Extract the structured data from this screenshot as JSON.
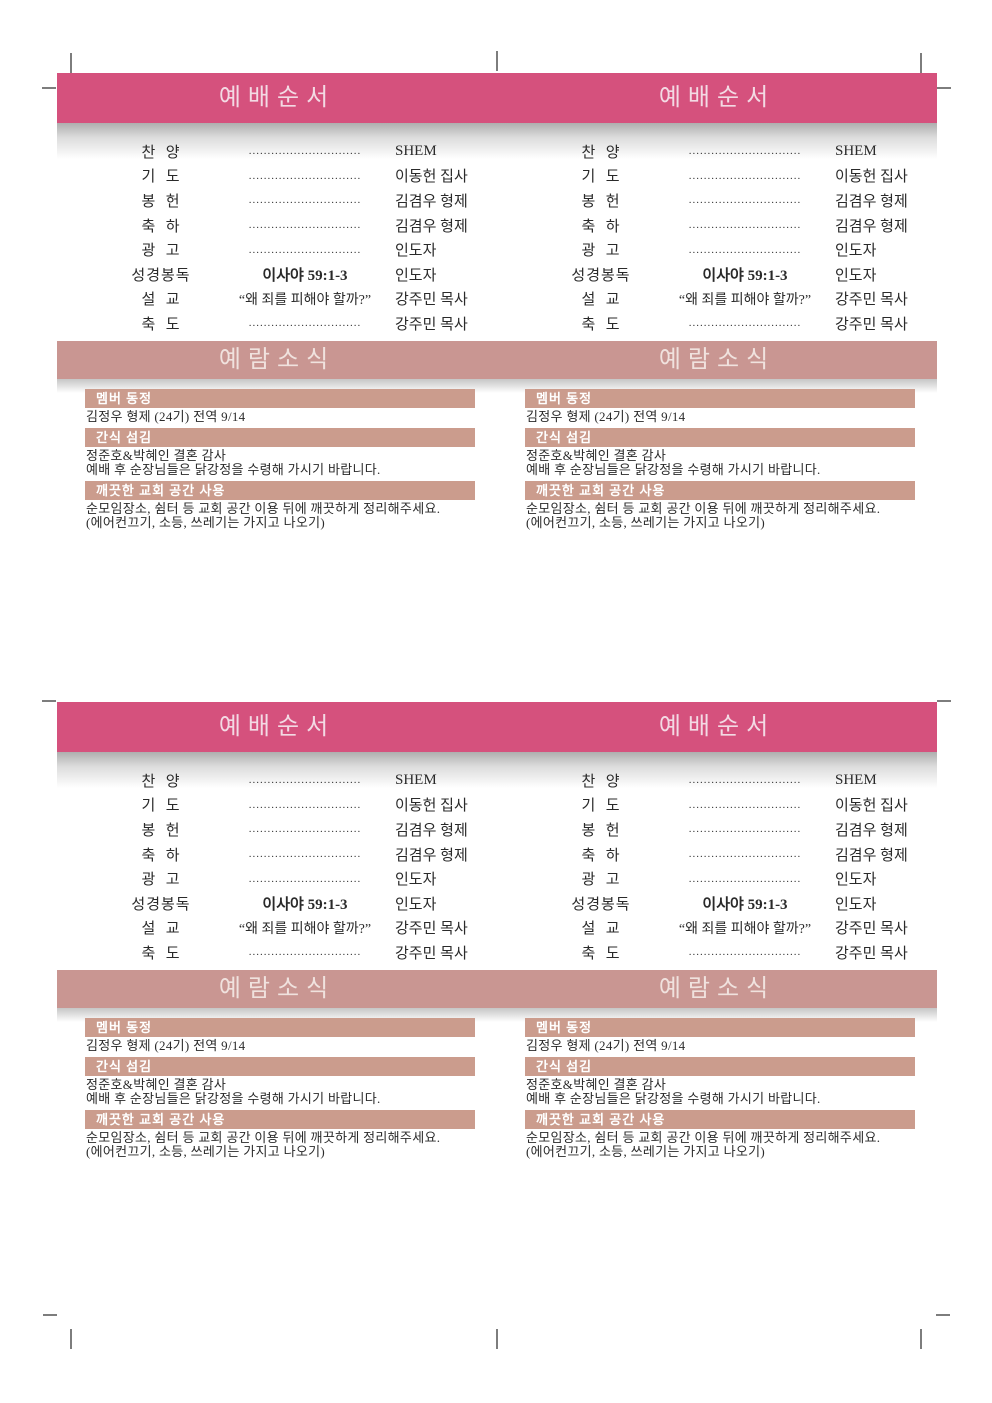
{
  "layout": {
    "halves": 2,
    "panels_per_half": 2
  },
  "colors": {
    "band_pink": "#d5517d",
    "band_pink_text": "#f3dae4",
    "band_rose": "#c99692",
    "band_rose_text": "#f0e2de",
    "section_bar": "#cb9c8d",
    "section_bar_text": "#ffffff",
    "body_text": "#2a2a2a",
    "crop_mark": "#7d7d7d"
  },
  "panel": {
    "worship_header": "예배순서",
    "news_header": "예람소식",
    "dots": "..............................",
    "worship_rows": [
      {
        "label": "찬  양",
        "middle": "",
        "bold": false,
        "name": "SHEM"
      },
      {
        "label": "기  도",
        "middle": "",
        "bold": false,
        "name": "이동헌 집사"
      },
      {
        "label": "봉  헌",
        "middle": "",
        "bold": false,
        "name": "김겸우 형제"
      },
      {
        "label": "축  하",
        "middle": "",
        "bold": false,
        "name": "김겸우 형제"
      },
      {
        "label": "광  고",
        "middle": "",
        "bold": false,
        "name": "인도자"
      },
      {
        "label": "성경봉독",
        "middle": "이사야 59:1-3",
        "bold": true,
        "name": "인도자"
      },
      {
        "label": "설  교",
        "middle": "“왜 죄를 피해야 할까?”",
        "bold": false,
        "name": "강주민 목사"
      },
      {
        "label": "축  도",
        "middle": "",
        "bold": false,
        "name": "강주민 목사"
      }
    ],
    "news_sections": [
      {
        "heading": "멤버 동정",
        "lines": [
          "김정우 형제 (24기) 전역 9/14"
        ]
      },
      {
        "heading": "간식 섬김",
        "lines": [
          "정준호&박혜인 결혼 감사",
          "예배 후 순장님들은 닭강정을 수령해 가시기 바랍니다."
        ]
      },
      {
        "heading": "깨끗한 교회 공간 사용",
        "lines": [
          "순모임장소, 쉼터 등 교회 공간 이용 뒤에 깨끗하게 정리해주세요.",
          "(에어컨끄기, 소등, 쓰레기는 가지고 나오기)"
        ]
      }
    ]
  }
}
